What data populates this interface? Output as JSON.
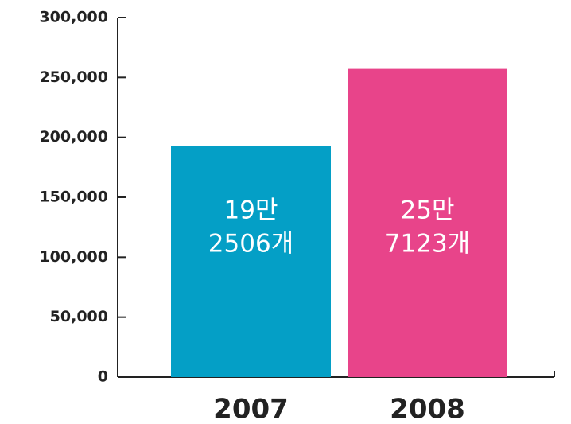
{
  "chart_data": {
    "type": "bar",
    "categories": [
      "2007",
      "2008"
    ],
    "values": [
      192506,
      257123
    ],
    "value_labels": [
      [
        "19만",
        "2506개"
      ],
      [
        "25만",
        "7123개"
      ]
    ],
    "colors": [
      "#049fc6",
      "#e8448a"
    ],
    "ylim": [
      0,
      300000
    ],
    "yticks": [
      0,
      {
        "value": 50000,
        "label": "50,000"
      },
      {
        "value": 100000,
        "label": "100,000"
      },
      {
        "value": 150000,
        "label": "150,000"
      },
      {
        "value": 200000,
        "label": "200,000"
      },
      {
        "value": 250000,
        "label": "250,000"
      },
      {
        "value": 300000,
        "label": "300,000"
      }
    ]
  }
}
